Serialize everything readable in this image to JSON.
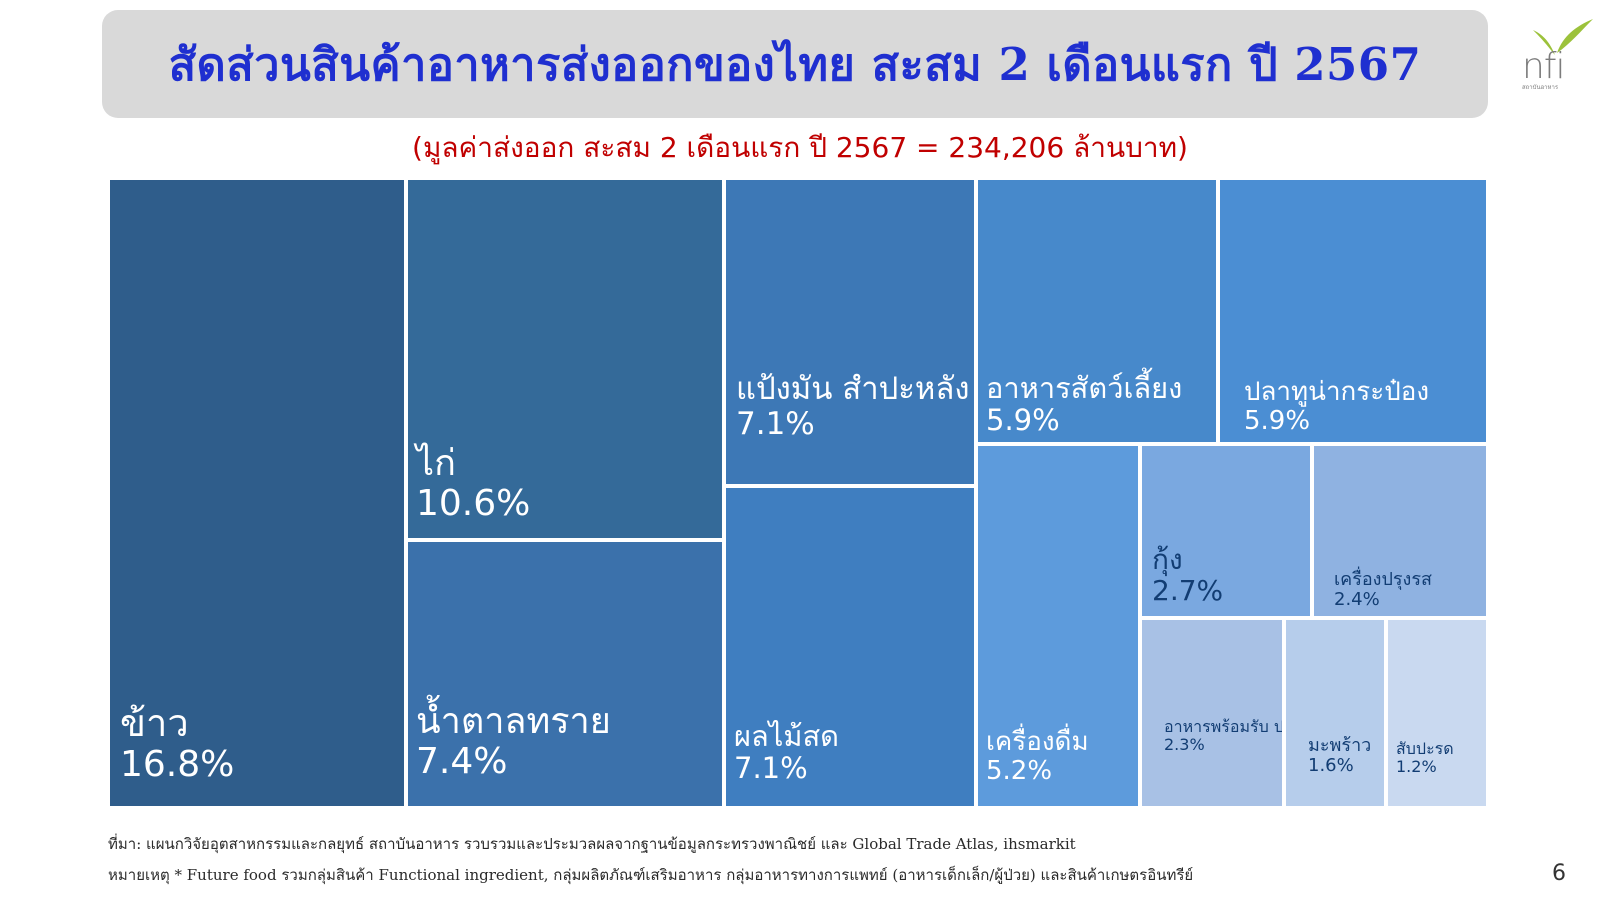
{
  "title": "สัดส่วนสินค้าอาหารส่งออกของไทย สะสม 2 เดือนแรก ปี 2567",
  "subtitle": "(มูลค่าส่งออก สะสม 2 เดือนแรก ปี 2567 =   234,206  ล้านบาท)",
  "logo": {
    "text": "nfi",
    "icon": "leaf-logo-icon",
    "subtext": "สถาบันอาหาร"
  },
  "footer": {
    "source": "ที่มา: แผนกวิจัยอุตสาหกรรมและกลยุทธ์  สถาบันอาหาร รวบรวมและประมวลผลจากฐานข้อมูลกระทรวงพาณิชย์ และ Global Trade Atlas, ihsmarkit",
    "note": "หมายเหตุ * Future food รวมกลุ่มสินค้า Functional ingredient, กลุ่มผลิตภัณฑ์เสริมอาหาร กลุ่มอาหารทางการแพทย์ (อาหารเด็กเล็ก/ผู้ป่วย) และสินค้าเกษตรอินทรีย์"
  },
  "page_number": "6",
  "colors": {
    "title_bg": "#d9d9d9",
    "title_text": "#1f2fd0",
    "subtitle_text": "#c00000",
    "dark_blue": "#2f5d8b",
    "mid_blue": "#3f72ad",
    "light_blue": "#8fb0df"
  },
  "chart_data": {
    "type": "treemap",
    "categories": [
      "ข้าว",
      "ไก่",
      "น้ำตาลทราย",
      "แป้งมัน สำปะหลัง",
      "ผลไม้สด",
      "อาหารสัตว์เลี้ยง",
      "ปลาทูน่ากระป๋อง",
      "เครื่องดื่ม",
      "กุ้ง",
      "เครื่องปรุงรส",
      "อาหารพร้อมรับ ประทาน",
      "มะพร้าว",
      "สับปะรด"
    ],
    "values": [
      16.8,
      10.6,
      7.4,
      7.1,
      7.1,
      5.9,
      5.9,
      5.2,
      2.7,
      2.4,
      2.3,
      1.6,
      1.2
    ],
    "items": [
      {
        "name": "ข้าว",
        "value": 16.8,
        "label": "16.8%",
        "color": "#2f5d8b"
      },
      {
        "name": "ไก่",
        "value": 10.6,
        "label": "10.6%",
        "color": "#346a99"
      },
      {
        "name": "น้ำตาลทราย",
        "value": 7.4,
        "label": "7.4%",
        "color": "#3b71ab"
      },
      {
        "name": "แป้งมัน สำปะหลัง",
        "value": 7.1,
        "label": "7.1%",
        "color": "#3d78b6"
      },
      {
        "name": "ผลไม้สด",
        "value": 7.1,
        "label": "7.1%",
        "color": "#3f7ec0"
      },
      {
        "name": "อาหารสัตว์เลี้ยง",
        "value": 5.9,
        "label": "5.9%",
        "color": "#4789cb"
      },
      {
        "name": "ปลาทูน่ากระป๋อง",
        "value": 5.9,
        "label": "5.9%",
        "color": "#4b8ed3"
      },
      {
        "name": "เครื่องดื่ม",
        "value": 5.2,
        "label": "5.2%",
        "color": "#5d9bdc"
      },
      {
        "name": "กุ้ง",
        "value": 2.7,
        "label": "2.7%",
        "color": "#7aa8e0"
      },
      {
        "name": "เครื่องปรุงรส",
        "value": 2.4,
        "label": "2.4%",
        "color": "#8fb2e1"
      },
      {
        "name": "อาหารพร้อมรับ ประทาน",
        "value": 2.3,
        "label": "2.3%",
        "color": "#a8c1e5"
      },
      {
        "name": "มะพร้าว",
        "value": 1.6,
        "label": "1.6%",
        "color": "#b6cdeb"
      },
      {
        "name": "สับปะรด",
        "value": 1.2,
        "label": "1.2%",
        "color": "#c9d9f0"
      }
    ]
  }
}
